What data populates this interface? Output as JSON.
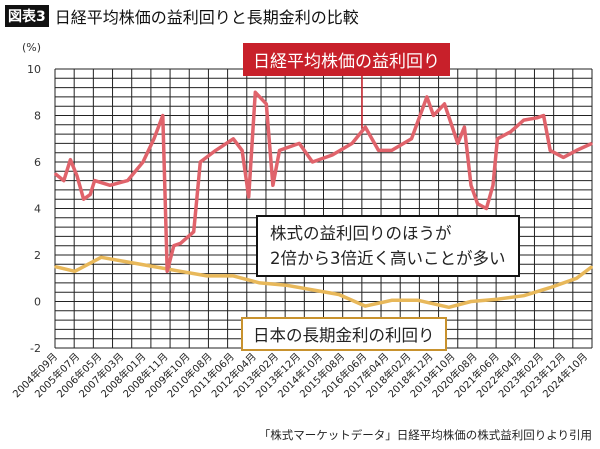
{
  "header": {
    "badge": "図表3",
    "title": "日経平均株価の益利回りと長期金利の比較"
  },
  "footer": "「株式マーケットデータ」日経平均株価の株式益利回りより引用",
  "chart_data": {
    "type": "line",
    "ylabel": "(%)",
    "ylim": [
      -2,
      10
    ],
    "yticks": [
      10,
      8,
      6,
      4,
      2,
      0,
      -2
    ],
    "grid": true,
    "xrange": [
      "2004-09",
      "2025-01"
    ],
    "xtick_labels": [
      "2004年09月",
      "2005年07月",
      "2006年05月",
      "2007年03月",
      "2008年01月",
      "2008年11月",
      "2009年10月",
      "2010年08月",
      "2011年06月",
      "2012年04月",
      "2013年02月",
      "2013年12月",
      "2014年10月",
      "2015年08月",
      "2016年06月",
      "2017年04月",
      "2018年02月",
      "2018年12月",
      "2019年10月",
      "2020年08月",
      "2021年06月",
      "2022年04月",
      "2023年02月",
      "2023年12月",
      "2024年10月"
    ],
    "annotation": "株式の益利回りのほうが\n2倍から3倍近く高いことが多い",
    "series": [
      {
        "name": "日経平均株価の益利回り",
        "color": "#e0636b",
        "points": [
          [
            "2004-09",
            5.5
          ],
          [
            "2005-01",
            5.2
          ],
          [
            "2005-04",
            6.1
          ],
          [
            "2005-07",
            5.4
          ],
          [
            "2005-10",
            4.4
          ],
          [
            "2006-01",
            4.6
          ],
          [
            "2006-03",
            5.2
          ],
          [
            "2006-10",
            5.0
          ],
          [
            "2007-06",
            5.2
          ],
          [
            "2008-01",
            6.0
          ],
          [
            "2008-06",
            7.0
          ],
          [
            "2008-10",
            8.0
          ],
          [
            "2008-12",
            1.3
          ],
          [
            "2009-03",
            2.4
          ],
          [
            "2009-06",
            2.5
          ],
          [
            "2009-12",
            3.0
          ],
          [
            "2010-03",
            6.0
          ],
          [
            "2010-10",
            6.5
          ],
          [
            "2011-06",
            7.0
          ],
          [
            "2011-10",
            6.5
          ],
          [
            "2012-01",
            4.5
          ],
          [
            "2012-04",
            9.0
          ],
          [
            "2012-09",
            8.5
          ],
          [
            "2012-12",
            5.0
          ],
          [
            "2013-03",
            6.5
          ],
          [
            "2013-12",
            6.8
          ],
          [
            "2014-06",
            6.0
          ],
          [
            "2015-03",
            6.3
          ],
          [
            "2015-12",
            6.8
          ],
          [
            "2016-06",
            7.5
          ],
          [
            "2016-12",
            6.5
          ],
          [
            "2017-06",
            6.5
          ],
          [
            "2018-03",
            7.0
          ],
          [
            "2018-10",
            8.8
          ],
          [
            "2019-01",
            8.0
          ],
          [
            "2019-06",
            8.5
          ],
          [
            "2019-12",
            6.8
          ],
          [
            "2020-03",
            7.5
          ],
          [
            "2020-06",
            5.0
          ],
          [
            "2020-09",
            4.2
          ],
          [
            "2021-01",
            4.0
          ],
          [
            "2021-04",
            5.0
          ],
          [
            "2021-06",
            7.0
          ],
          [
            "2021-12",
            7.3
          ],
          [
            "2022-06",
            7.8
          ],
          [
            "2022-12",
            7.9
          ],
          [
            "2023-03",
            8.0
          ],
          [
            "2023-06",
            6.5
          ],
          [
            "2023-12",
            6.2
          ],
          [
            "2024-06",
            6.5
          ],
          [
            "2025-01",
            6.8
          ]
        ]
      },
      {
        "name": "日本の長期金利の利回り",
        "color": "#e8b85a",
        "points": [
          [
            "2004-09",
            1.5
          ],
          [
            "2005-06",
            1.3
          ],
          [
            "2006-06",
            1.9
          ],
          [
            "2007-06",
            1.7
          ],
          [
            "2008-06",
            1.5
          ],
          [
            "2009-06",
            1.3
          ],
          [
            "2010-06",
            1.1
          ],
          [
            "2011-06",
            1.1
          ],
          [
            "2012-06",
            0.8
          ],
          [
            "2013-06",
            0.7
          ],
          [
            "2014-06",
            0.5
          ],
          [
            "2015-06",
            0.3
          ],
          [
            "2016-06",
            -0.2
          ],
          [
            "2017-06",
            0.05
          ],
          [
            "2018-06",
            0.05
          ],
          [
            "2019-08",
            -0.25
          ],
          [
            "2020-06",
            0.0
          ],
          [
            "2021-06",
            0.1
          ],
          [
            "2022-06",
            0.25
          ],
          [
            "2023-06",
            0.6
          ],
          [
            "2024-06",
            1.0
          ],
          [
            "2025-01",
            1.5
          ]
        ]
      }
    ]
  }
}
